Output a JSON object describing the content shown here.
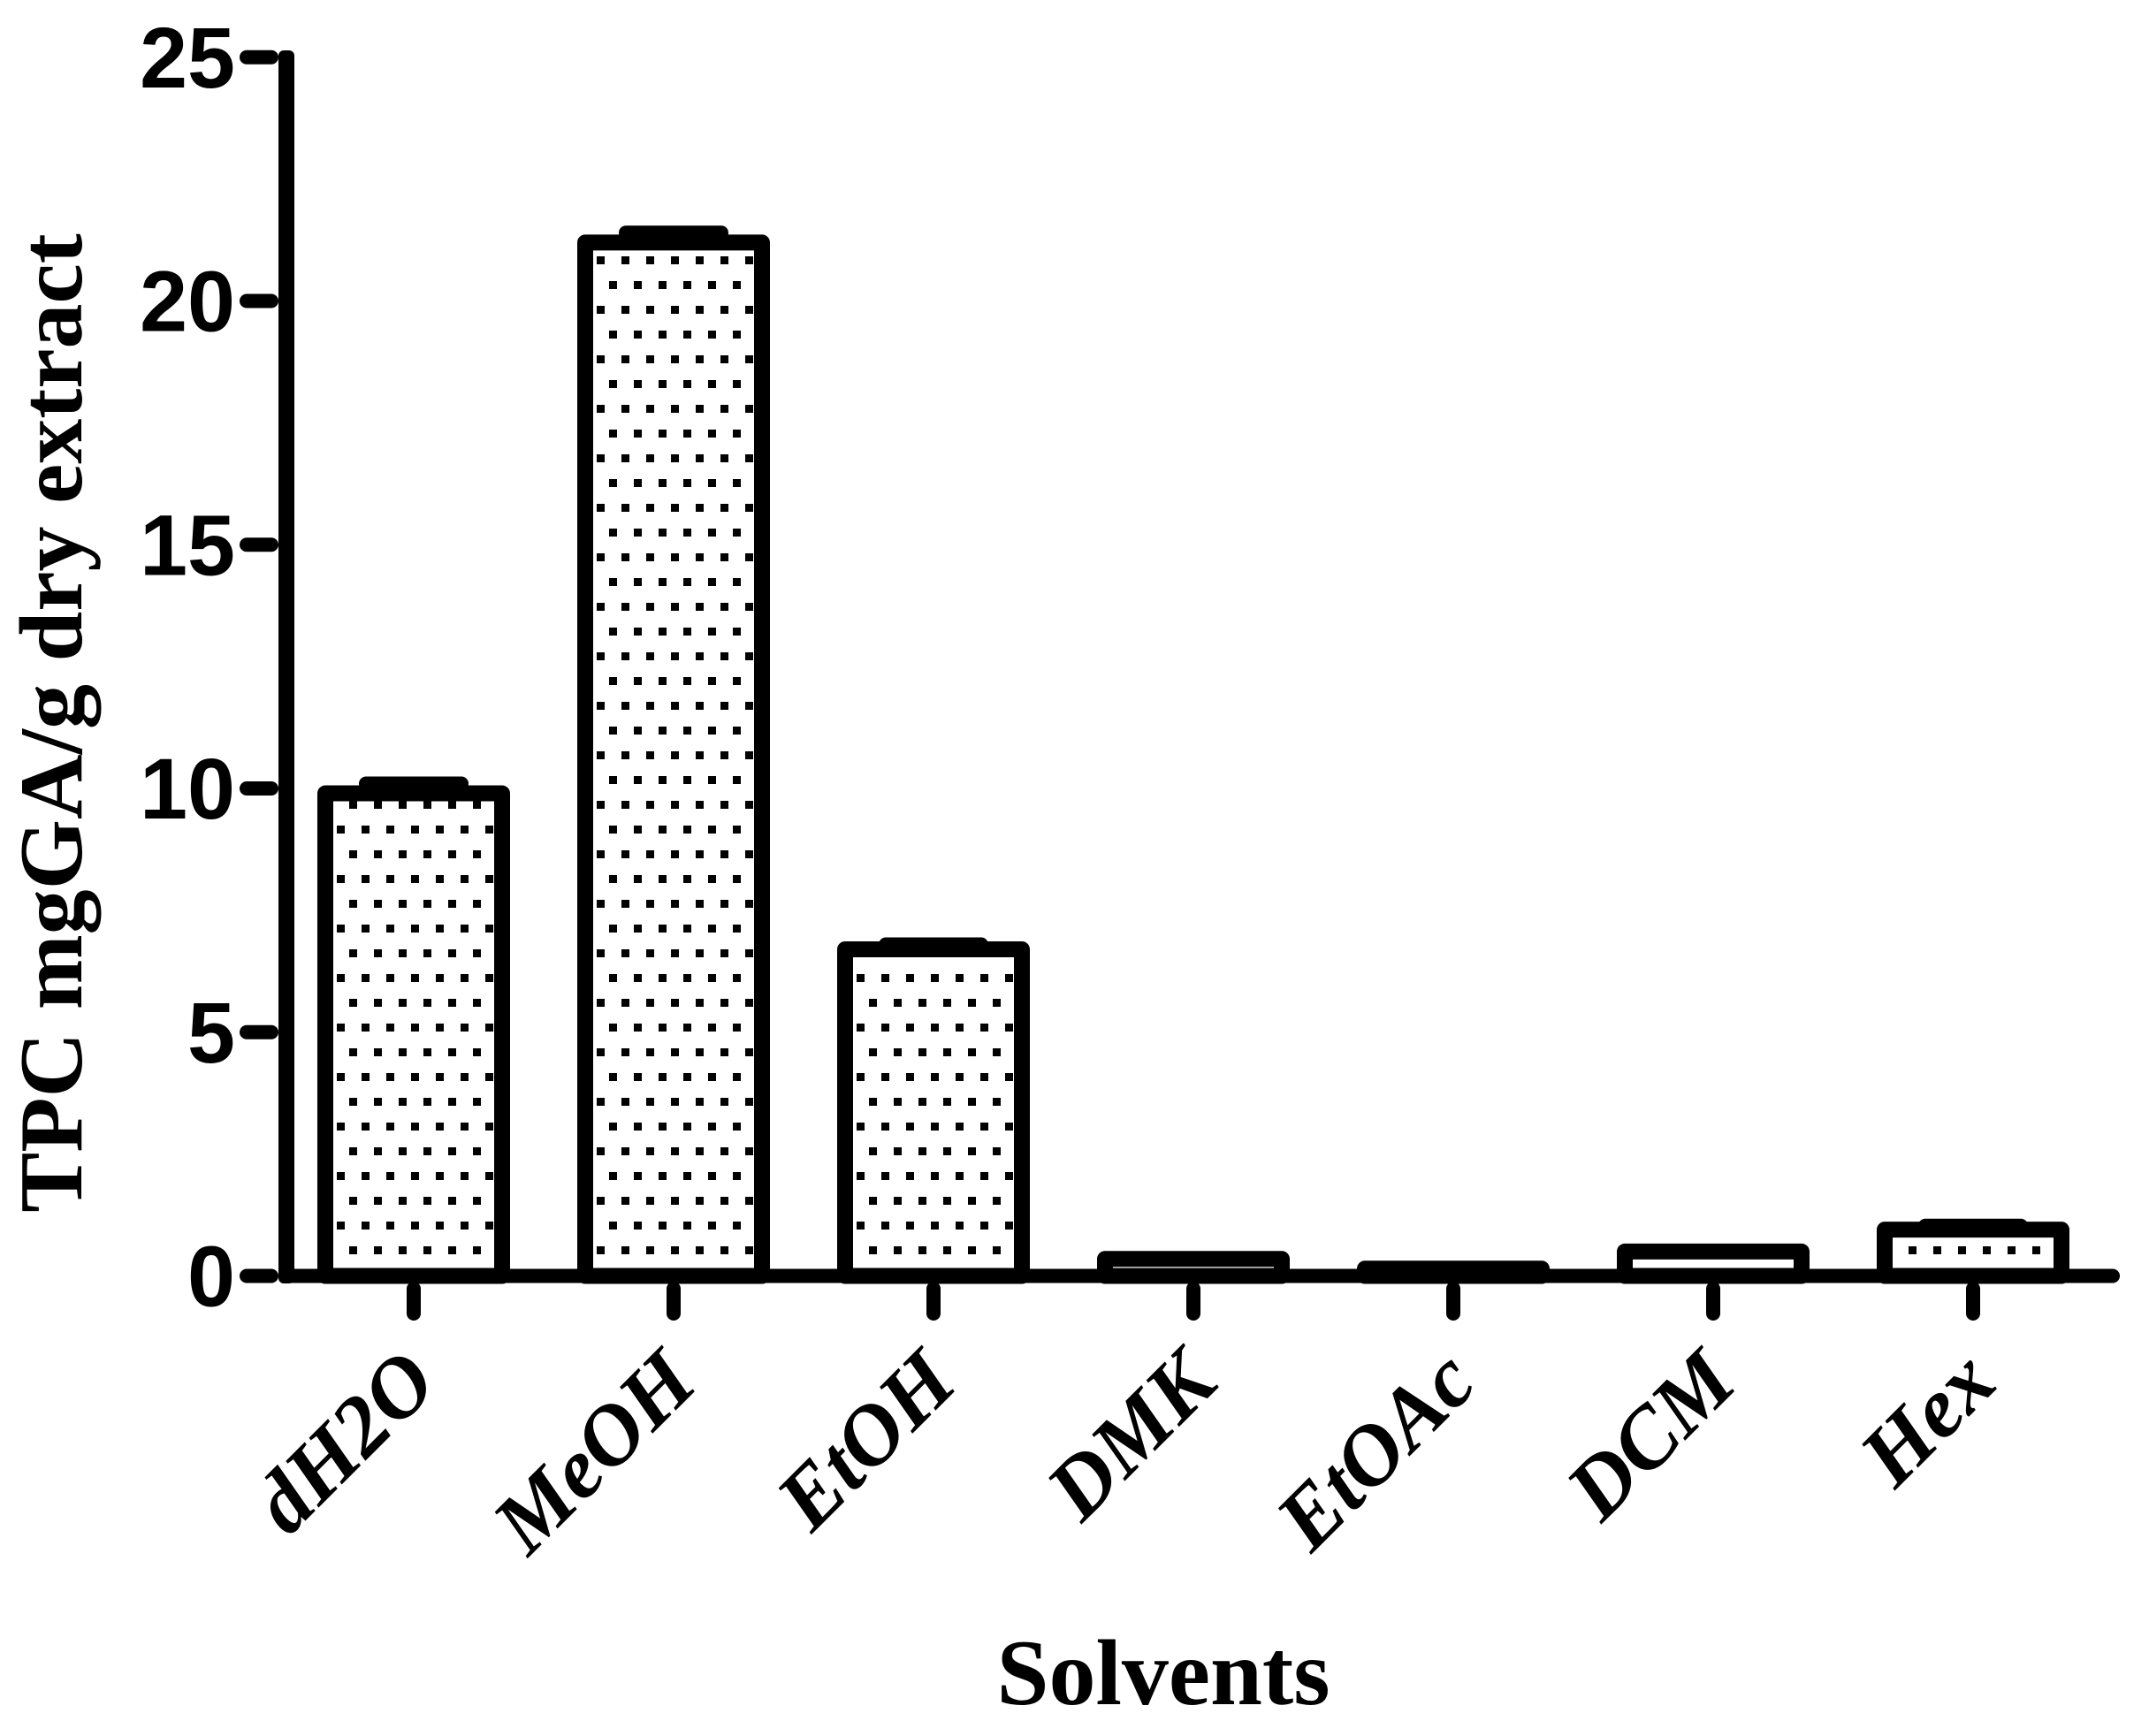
{
  "chart_data": {
    "type": "bar",
    "title": "",
    "xlabel": "Solvents",
    "ylabel": "TPC mgGA/g dry extract",
    "categories": [
      "dH2O",
      "MeOH",
      "EtOH",
      "DMK",
      "EtOAc",
      "DCM",
      "Hex"
    ],
    "series": [
      {
        "name": "TPC",
        "values": [
          9.9,
          21.2,
          6.7,
          0.35,
          0.15,
          0.5,
          0.95
        ],
        "errors": [
          0.2,
          0.2,
          0.1,
          0,
          0,
          0,
          0.08
        ]
      }
    ],
    "ylim": [
      0,
      25
    ],
    "yticks": [
      0,
      5,
      10,
      15,
      20,
      25
    ],
    "grid": false,
    "legend": "none",
    "bar_style": "white fill with black square-dot stipple pattern, thick black outline",
    "error_bar_style": "cap only, above bar top",
    "colors": {
      "foreground": "#000000",
      "background": "#ffffff"
    }
  }
}
